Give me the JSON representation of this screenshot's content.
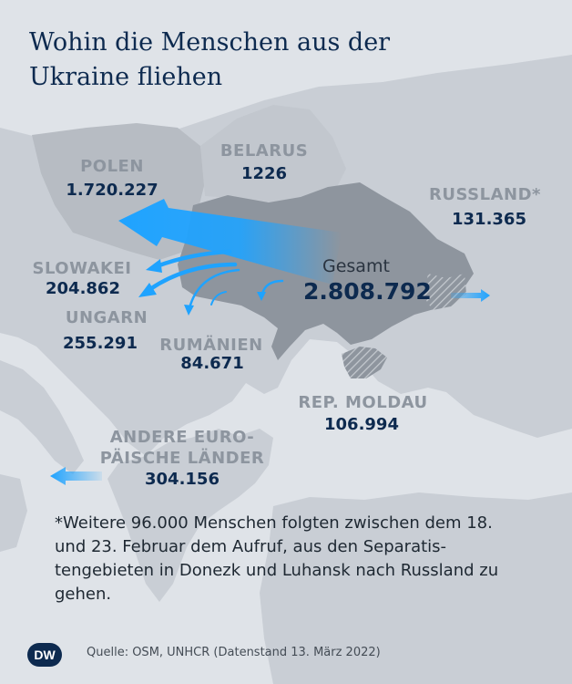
{
  "title": "Wohin die Menschen aus der Ukraine fliehen",
  "total": {
    "label": "Gesamt",
    "value": "2.808.792"
  },
  "countries": {
    "poland": {
      "name": "POLEN",
      "value": "1.720.227"
    },
    "belarus": {
      "name": "BELARUS",
      "value": "1226"
    },
    "russia": {
      "name": "RUSSLAND*",
      "value": "131.365"
    },
    "slovakia": {
      "name": "SLOWAKEI",
      "value": "204.862"
    },
    "hungary": {
      "name": "UNGARN",
      "value": "255.291"
    },
    "romania": {
      "name": "RUMÄNIEN",
      "value": "84.671"
    },
    "moldova": {
      "name": "REP. MOLDAU",
      "value": "106.994"
    },
    "other": {
      "name_line1": "ANDERE EURO-",
      "name_line2": "PÄISCHE LÄNDER",
      "value": "304.156"
    }
  },
  "footnote": "*Weitere 96.000 Menschen folgten zwischen dem 18. und 23. Februar dem Aufruf, aus den Separatis­tengebieten in Donezk und Luhansk nach Russland zu gehen.",
  "source": "Quelle: OSM, UNHCR (Datenstand 13. März 2022)",
  "logo_text": "DW",
  "colors": {
    "sea": "#dfe3e8",
    "land": "#c9ced5",
    "neighbor": "#b7bcc3",
    "ukraine": "#8e959e",
    "arrow": "#1fa3ff",
    "title": "#0d2a4f",
    "country_name": "#8d959f"
  }
}
